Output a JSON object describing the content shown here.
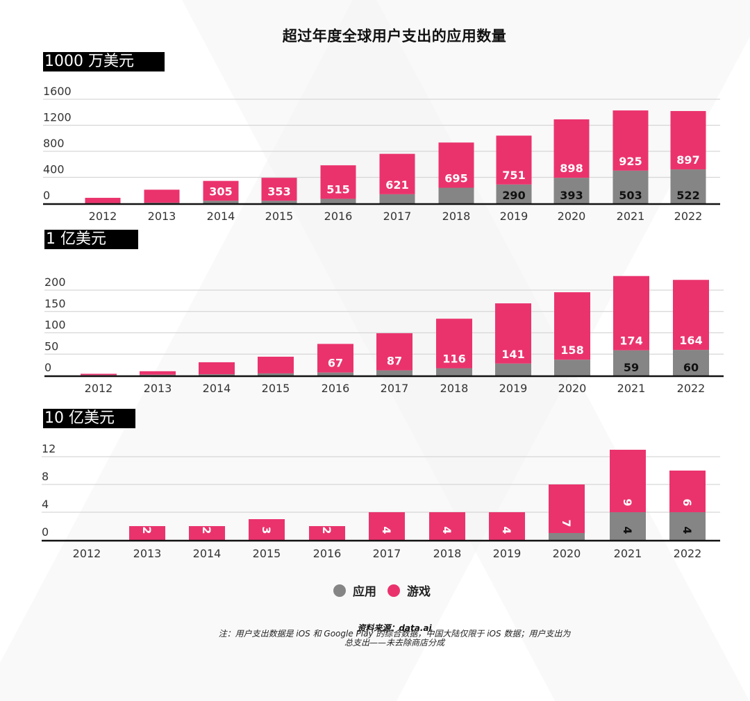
{
  "title": "超过年度全球用户支出的应用数量",
  "colors": {
    "apps": "#858585",
    "games": "#ea336d",
    "axis": "#111111",
    "grid": "#d6d6d6"
  },
  "legend": [
    {
      "label": "应用",
      "color": "#858585"
    },
    {
      "label": "游戏",
      "color": "#ea336d"
    }
  ],
  "source": "资料来源：data.ai",
  "note_line1": "注：用户支出数据是 iOS 和 Google Play 的综合数据，中国大陆仅限于 iOS 数据；用户支出为",
  "note_line2": "总支出——未去除商店分成",
  "chart_data": [
    {
      "type": "bar",
      "stacked": true,
      "title": "1000 万美元",
      "categories": [
        "2012",
        "2013",
        "2014",
        "2015",
        "2016",
        "2017",
        "2018",
        "2019",
        "2020",
        "2021",
        "2022"
      ],
      "yticks": [
        0,
        400,
        800,
        1200,
        1600
      ],
      "ylim": [
        0,
        1600
      ],
      "grid": true,
      "series": [
        {
          "name": "应用",
          "values": [
            5,
            10,
            40,
            40,
            70,
            140,
            240,
            290,
            393,
            503,
            522
          ],
          "labels": [
            "",
            "",
            "",
            "",
            "",
            "",
            "",
            "290",
            "393",
            "503",
            "522"
          ]
        },
        {
          "name": "游戏",
          "values": [
            80,
            200,
            305,
            353,
            515,
            621,
            695,
            751,
            898,
            925,
            897
          ],
          "labels": [
            "",
            "",
            "305",
            "353",
            "515",
            "621",
            "695",
            "751",
            "898",
            "925",
            "897"
          ]
        }
      ]
    },
    {
      "type": "bar",
      "stacked": true,
      "title": "1 亿美元",
      "categories": [
        "2012",
        "2013",
        "2014",
        "2015",
        "2016",
        "2017",
        "2018",
        "2019",
        "2020",
        "2021",
        "2022"
      ],
      "yticks": [
        0,
        50,
        100,
        150,
        200
      ],
      "ylim": [
        0,
        200
      ],
      "grid": true,
      "series": [
        {
          "name": "应用",
          "values": [
            1,
            2,
            3,
            5,
            7,
            12,
            17,
            28,
            37,
            59,
            60
          ],
          "labels": [
            "",
            "",
            "",
            "",
            "",
            "",
            "",
            "",
            "",
            "59",
            "60"
          ]
        },
        {
          "name": "游戏",
          "values": [
            3,
            8,
            28,
            39,
            67,
            87,
            116,
            141,
            158,
            174,
            164
          ],
          "labels": [
            "",
            "",
            "",
            "",
            "67",
            "87",
            "116",
            "141",
            "158",
            "174",
            "164"
          ]
        }
      ]
    },
    {
      "type": "bar",
      "stacked": true,
      "title": "10 亿美元",
      "categories": [
        "2012",
        "2013",
        "2014",
        "2015",
        "2016",
        "2017",
        "2018",
        "2019",
        "2020",
        "2021",
        "2022"
      ],
      "yticks": [
        0,
        4,
        8,
        12
      ],
      "ylim": [
        0,
        12
      ],
      "grid": true,
      "series": [
        {
          "name": "应用",
          "values": [
            0,
            0,
            0,
            0,
            0,
            0,
            0,
            0,
            1,
            4,
            4
          ],
          "labels": [
            "",
            "",
            "",
            "",
            "",
            "",
            "",
            "",
            "",
            "4",
            "4"
          ]
        },
        {
          "name": "游戏",
          "values": [
            0,
            2,
            2,
            3,
            2,
            4,
            4,
            4,
            7,
            9,
            6
          ],
          "labels": [
            "",
            "2",
            "2",
            "3",
            "2",
            "4",
            "4",
            "4",
            "7",
            "9",
            "6"
          ]
        }
      ],
      "rotated_labels": true
    }
  ]
}
